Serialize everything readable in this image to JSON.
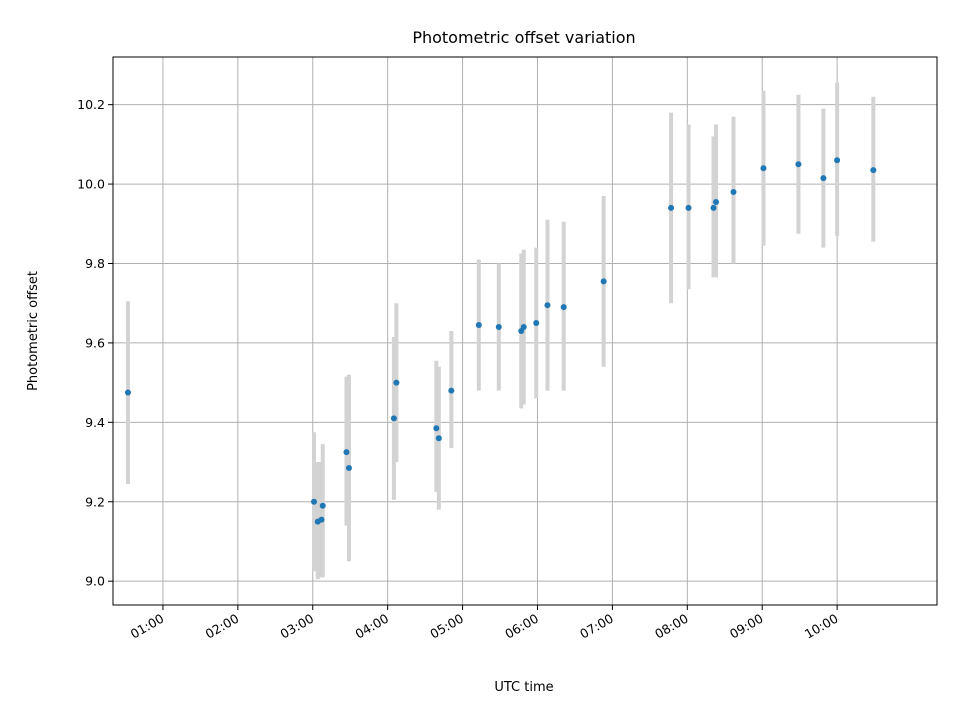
{
  "chart_data": {
    "type": "scatter",
    "title": "Photometric offset variation",
    "xlabel": "UTC time",
    "ylabel": "Photometric offset",
    "xlim": [
      "00:20",
      "11:20"
    ],
    "ylim": [
      8.94,
      10.32
    ],
    "x_ticks": [
      "01:00",
      "02:00",
      "03:00",
      "04:00",
      "05:00",
      "06:00",
      "07:00",
      "08:00",
      "09:00",
      "10:00"
    ],
    "y_ticks": [
      9.0,
      9.2,
      9.4,
      9.6,
      9.8,
      10.0,
      10.2
    ],
    "grid": true,
    "colors": {
      "marker": "#1f77b4",
      "errorbar": "#d3d3d3",
      "grid": "#b0b0b0"
    },
    "series": [
      {
        "points": [
          {
            "x": "00:32",
            "y": 9.475,
            "ylow": 9.245,
            "yhigh": 9.705
          },
          {
            "x": "03:01",
            "y": 9.2,
            "ylow": 9.025,
            "yhigh": 9.375
          },
          {
            "x": "03:04",
            "y": 9.15,
            "ylow": 9.005,
            "yhigh": 9.3
          },
          {
            "x": "03:07",
            "y": 9.155,
            "ylow": 9.01,
            "yhigh": 9.3
          },
          {
            "x": "03:08",
            "y": 9.19,
            "ylow": 9.01,
            "yhigh": 9.345
          },
          {
            "x": "03:27",
            "y": 9.325,
            "ylow": 9.14,
            "yhigh": 9.515
          },
          {
            "x": "03:29",
            "y": 9.285,
            "ylow": 9.05,
            "yhigh": 9.52
          },
          {
            "x": "04:05",
            "y": 9.41,
            "ylow": 9.205,
            "yhigh": 9.615
          },
          {
            "x": "04:07",
            "y": 9.5,
            "ylow": 9.3,
            "yhigh": 9.7
          },
          {
            "x": "04:39",
            "y": 9.385,
            "ylow": 9.225,
            "yhigh": 9.555
          },
          {
            "x": "04:41",
            "y": 9.36,
            "ylow": 9.18,
            "yhigh": 9.54
          },
          {
            "x": "04:51",
            "y": 9.48,
            "ylow": 9.335,
            "yhigh": 9.63
          },
          {
            "x": "05:13",
            "y": 9.645,
            "ylow": 9.48,
            "yhigh": 9.81
          },
          {
            "x": "05:29",
            "y": 9.64,
            "ylow": 9.48,
            "yhigh": 9.8
          },
          {
            "x": "05:47",
            "y": 9.63,
            "ylow": 9.435,
            "yhigh": 9.825
          },
          {
            "x": "05:49",
            "y": 9.64,
            "ylow": 9.445,
            "yhigh": 9.835
          },
          {
            "x": "05:59",
            "y": 9.65,
            "ylow": 9.46,
            "yhigh": 9.84
          },
          {
            "x": "06:08",
            "y": 9.695,
            "ylow": 9.48,
            "yhigh": 9.91
          },
          {
            "x": "06:21",
            "y": 9.69,
            "ylow": 9.48,
            "yhigh": 9.905
          },
          {
            "x": "06:53",
            "y": 9.755,
            "ylow": 9.54,
            "yhigh": 9.97
          },
          {
            "x": "07:47",
            "y": 9.94,
            "ylow": 9.7,
            "yhigh": 10.18
          },
          {
            "x": "08:01",
            "y": 9.94,
            "ylow": 9.735,
            "yhigh": 10.15
          },
          {
            "x": "08:21",
            "y": 9.94,
            "ylow": 9.765,
            "yhigh": 10.12
          },
          {
            "x": "08:23",
            "y": 9.955,
            "ylow": 9.765,
            "yhigh": 10.15
          },
          {
            "x": "08:37",
            "y": 9.98,
            "ylow": 9.8,
            "yhigh": 10.17
          },
          {
            "x": "09:01",
            "y": 10.04,
            "ylow": 9.845,
            "yhigh": 10.235
          },
          {
            "x": "09:29",
            "y": 10.05,
            "ylow": 9.875,
            "yhigh": 10.225
          },
          {
            "x": "09:49",
            "y": 10.015,
            "ylow": 9.84,
            "yhigh": 10.19
          },
          {
            "x": "10:00",
            "y": 10.06,
            "ylow": 9.87,
            "yhigh": 10.255
          },
          {
            "x": "10:29",
            "y": 10.035,
            "ylow": 9.855,
            "yhigh": 10.22
          }
        ]
      }
    ]
  }
}
